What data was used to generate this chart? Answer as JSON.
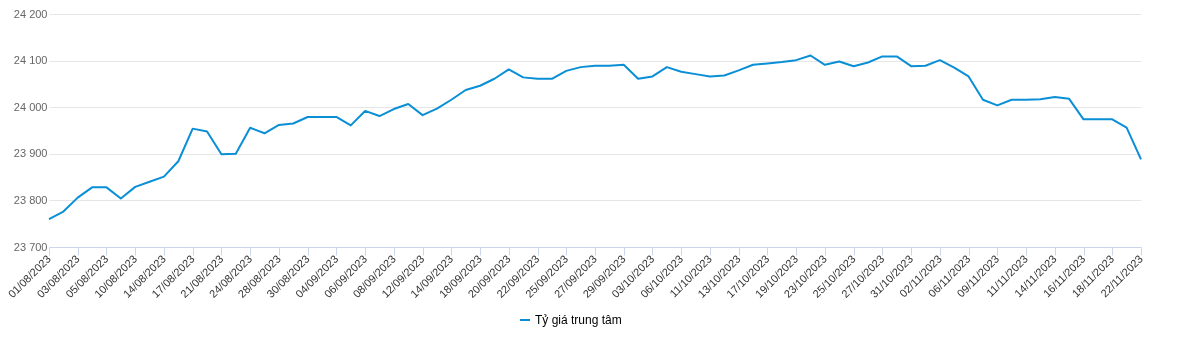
{
  "chart_data": {
    "type": "line",
    "categories": [
      "01/08/2023",
      null,
      "03/08/2023",
      null,
      "05/08/2023",
      null,
      "10/08/2023",
      null,
      "14/08/2023",
      null,
      "17/08/2023",
      null,
      "21/08/2023",
      null,
      "24/08/2023",
      null,
      "28/08/2023",
      null,
      "30/08/2023",
      null,
      "04/09/2023",
      null,
      "06/09/2023",
      null,
      "08/09/2023",
      null,
      "12/09/2023",
      null,
      "14/09/2023",
      null,
      "18/09/2023",
      null,
      "20/09/2023",
      null,
      "22/09/2023",
      null,
      "25/09/2023",
      null,
      "27/09/2023",
      null,
      "29/09/2023",
      null,
      "03/10/2023",
      null,
      "06/10/2023",
      null,
      "11/10/2023",
      null,
      "13/10/2023",
      null,
      "17/10/2023",
      null,
      "19/10/2023",
      null,
      "23/10/2023",
      null,
      "25/10/2023",
      null,
      "27/10/2023",
      null,
      "31/10/2023",
      null,
      "02/11/2023",
      null,
      "06/11/2023",
      null,
      "09/11/2023",
      null,
      "11/11/2023",
      null,
      "14/11/2023",
      null,
      "16/11/2023",
      null,
      "18/11/2023",
      null,
      "22/11/2023"
    ],
    "series": [
      {
        "name": "Tỷ giá trung tâm",
        "color": "#0a8fd6",
        "values": [
          23760,
          23776,
          23806,
          23828,
          23828,
          23804,
          23829,
          23840,
          23851,
          23884,
          23954,
          23948,
          23899,
          23900,
          23956,
          23944,
          23962,
          23965,
          23979,
          23979,
          23979,
          23961,
          23992,
          23981,
          23996,
          24007,
          23983,
          23997,
          24016,
          24037,
          24046,
          24061,
          24081,
          24064,
          24061,
          24061,
          24078,
          24086,
          24089,
          24089,
          24091,
          24061,
          24066,
          24086,
          24076,
          24071,
          24066,
          24068,
          24079,
          24091,
          24094,
          24097,
          24101,
          24111,
          24091,
          24098,
          24088,
          24096,
          24109,
          24109,
          24088,
          24089,
          24101,
          24085,
          24066,
          24016,
          24004,
          24016,
          24016,
          24017,
          24022,
          24018,
          23974,
          23974,
          23974,
          23956,
          23888
        ]
      }
    ],
    "ylim": [
      23700,
      24200
    ],
    "yticks": [
      {
        "value": 23700,
        "label": "23 700"
      },
      {
        "value": 23800,
        "label": "23 800"
      },
      {
        "value": 23900,
        "label": "23 900"
      },
      {
        "value": 24000,
        "label": "24 000"
      },
      {
        "value": 24100,
        "label": "24 100"
      },
      {
        "value": 24200,
        "label": "24 200"
      }
    ],
    "grid": "y",
    "legend": "bottom",
    "line_style": "solid"
  }
}
